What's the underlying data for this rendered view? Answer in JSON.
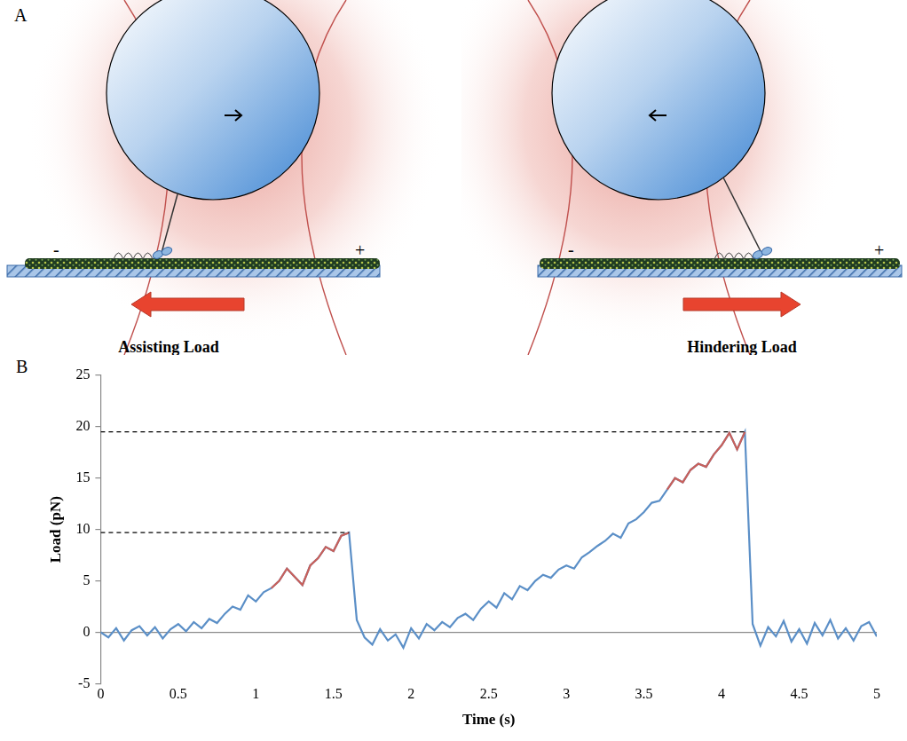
{
  "diagram": {
    "label": "A",
    "panels": [
      {
        "caption": "Assisting Load",
        "minus": "-",
        "plus": "+"
      },
      {
        "caption": "Hindering Load",
        "minus": "-",
        "plus": "+"
      }
    ]
  },
  "chart_panel_label": "B",
  "chart_data": {
    "type": "line",
    "x_label": "Time (s)",
    "y_label": "Load (pN)",
    "xlim": [
      0,
      5
    ],
    "xticks": [
      0,
      0.5,
      1,
      1.5,
      2,
      2.5,
      3,
      3.5,
      4,
      4.5,
      5
    ],
    "ylim": [
      -5,
      25
    ],
    "yticks": [
      -5,
      0,
      5,
      10,
      15,
      20,
      25
    ],
    "grid": false,
    "series": [
      {
        "color": "#5b8fc7",
        "x": [
          0,
          0.05,
          0.1,
          0.15,
          0.2,
          0.25,
          0.3,
          0.35,
          0.4,
          0.45,
          0.5,
          0.55,
          0.6,
          0.65,
          0.7,
          0.75,
          0.8,
          0.85,
          0.9,
          0.95,
          1,
          1.05,
          1.1,
          1.15,
          1.2,
          1.25,
          1.3,
          1.35,
          1.4,
          1.45,
          1.5,
          1.55,
          1.6,
          1.65,
          1.7,
          1.75,
          1.8,
          1.85,
          1.9,
          1.95,
          2,
          2.05,
          2.1,
          2.15,
          2.2,
          2.25,
          2.3,
          2.35,
          2.4,
          2.45,
          2.5,
          2.55,
          2.6,
          2.65,
          2.7,
          2.75,
          2.8,
          2.85,
          2.9,
          2.95,
          3,
          3.05,
          3.1,
          3.15,
          3.2,
          3.25,
          3.3,
          3.35,
          3.4,
          3.45,
          3.5,
          3.55,
          3.6,
          3.65,
          3.7,
          3.75,
          3.8,
          3.85,
          3.9,
          3.95,
          4,
          4.05,
          4.1,
          4.15,
          4.2,
          4.25,
          4.3,
          4.35,
          4.4,
          4.45,
          4.5,
          4.55,
          4.6,
          4.65,
          4.7,
          4.75,
          4.8,
          4.85,
          4.9,
          4.95,
          5
        ],
        "values": [
          0,
          -0.5,
          0.4,
          -0.8,
          0.2,
          0.6,
          -0.3,
          0.5,
          -0.6,
          0.3,
          0.8,
          0.1,
          1.0,
          0.4,
          1.3,
          0.9,
          1.8,
          2.5,
          2.2,
          3.6,
          3.0,
          3.9,
          4.3,
          5.0,
          6.2,
          5.4,
          4.6,
          6.5,
          7.2,
          8.3,
          7.9,
          9.4,
          9.7,
          1.2,
          -0.5,
          -1.2,
          0.3,
          -0.8,
          -0.2,
          -1.5,
          0.4,
          -0.6,
          0.8,
          0.2,
          1.0,
          0.5,
          1.4,
          1.8,
          1.2,
          2.3,
          3.0,
          2.4,
          3.8,
          3.2,
          4.5,
          4.1,
          5.0,
          5.6,
          5.3,
          6.1,
          6.5,
          6.2,
          7.3,
          7.8,
          8.4,
          8.9,
          9.6,
          9.2,
          10.6,
          11.0,
          11.7,
          12.6,
          12.8,
          13.9,
          15.0,
          14.6,
          15.8,
          16.4,
          16.1,
          17.3,
          18.2,
          19.4,
          17.8,
          19.5,
          0.8,
          -1.3,
          0.5,
          -0.4,
          1.1,
          -0.9,
          0.3,
          -1.1,
          0.9,
          -0.3,
          1.2,
          -0.6,
          0.4,
          -0.8,
          0.6,
          1.0,
          -0.4
        ]
      },
      {
        "color": "#c9605a",
        "x": [
          1.1,
          1.15,
          1.2,
          1.25,
          1.3,
          1.35,
          1.4,
          1.45,
          1.5,
          1.55,
          1.6
        ],
        "values": [
          4.3,
          5.0,
          6.2,
          5.4,
          4.6,
          6.5,
          7.2,
          8.3,
          7.9,
          9.4,
          9.7
        ]
      },
      {
        "color": "#c9605a",
        "x": [
          3.65,
          3.7,
          3.75,
          3.8,
          3.85,
          3.9,
          3.95,
          4,
          4.05,
          4.1,
          4.15
        ],
        "values": [
          13.9,
          15.0,
          14.6,
          15.8,
          16.4,
          16.1,
          17.3,
          18.2,
          19.4,
          17.8,
          19.5
        ]
      },
      {
        "color": "#000000",
        "line_style": "dashed",
        "x": [
          0,
          1.6
        ],
        "values": [
          9.7,
          9.7
        ]
      },
      {
        "color": "#000000",
        "line_style": "dashed",
        "x": [
          0,
          4.15
        ],
        "values": [
          19.5,
          19.5
        ]
      }
    ]
  }
}
